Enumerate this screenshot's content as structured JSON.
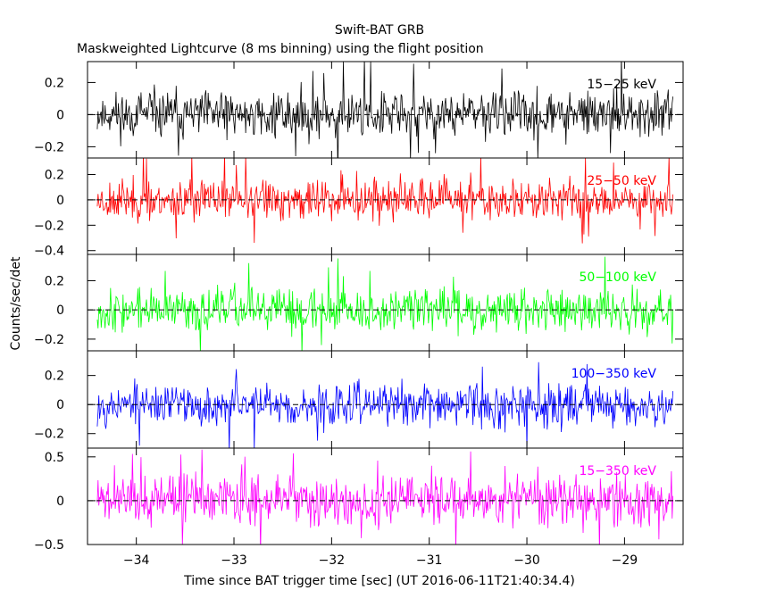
{
  "title": "Swift-BAT GRB",
  "subtitle": "Maskweighted Lightcurve (8 ms binning) using the flight position",
  "ylabel": "Counts/sec/det",
  "xlabel": "Time since BAT trigger time [sec] (UT 2016-06-11T21:40:34.4)",
  "chart_data": {
    "type": "line",
    "title": "Swift-BAT GRB",
    "subtitle": "Maskweighted Lightcurve (8 ms binning) using the flight position",
    "xlabel": "Time since BAT trigger time [sec] (UT 2016-06-11T21:40:34.4)",
    "ylabel": "Counts/sec/det",
    "xlim": [
      -34.5,
      -28.4
    ],
    "x_range_data": [
      -34.4,
      -28.5
    ],
    "x_ticks": [
      -34,
      -33,
      -32,
      -31,
      -30,
      -29
    ],
    "x_tick_labels": [
      "−34",
      "−33",
      "−32",
      "−31",
      "−30",
      "−29"
    ],
    "bin_size_s": 0.008,
    "panels": [
      {
        "name": "15-25 keV",
        "label": "15−25 keV",
        "color": "#000000",
        "ylim": [
          -0.27,
          0.33
        ],
        "y_ticks": [
          -0.2,
          0,
          0.2
        ],
        "y_tick_labels": [
          "−0.2",
          "0",
          "0.2"
        ],
        "amplitude": 0.09,
        "extreme": 0.3,
        "spike_rate": 0.025,
        "seed": 11
      },
      {
        "name": "25-50 keV",
        "label": "25−50 keV",
        "color": "#ff0000",
        "ylim": [
          -0.43,
          0.33
        ],
        "y_ticks": [
          -0.4,
          -0.2,
          0,
          0.2
        ],
        "y_tick_labels": [
          "−0.4",
          "−0.2",
          "0",
          "0.2"
        ],
        "amplitude": 0.1,
        "extreme": 0.3,
        "spike_rate": 0.015,
        "seed": 23
      },
      {
        "name": "50-100 keV",
        "label": "50−100 keV",
        "color": "#00ff00",
        "ylim": [
          -0.28,
          0.38
        ],
        "y_ticks": [
          -0.2,
          0,
          0.2
        ],
        "y_tick_labels": [
          "−0.2",
          "0",
          "0.2"
        ],
        "amplitude": 0.09,
        "extreme": 0.3,
        "spike_rate": 0.015,
        "seed": 37
      },
      {
        "name": "100-350 keV",
        "label": "100−350 keV",
        "color": "#0000ff",
        "ylim": [
          -0.3,
          0.37
        ],
        "y_ticks": [
          -0.2,
          0,
          0.2
        ],
        "y_tick_labels": [
          "−0.2",
          "0",
          "0.2"
        ],
        "amplitude": 0.09,
        "extreme": 0.3,
        "spike_rate": 0.015,
        "seed": 53
      },
      {
        "name": "15-350 keV",
        "label": "15−350 keV",
        "color": "#ff00ff",
        "ylim": [
          -0.5,
          0.6
        ],
        "y_ticks": [
          -0.5,
          0,
          0.5
        ],
        "y_tick_labels": [
          "−0.5",
          "0",
          "0.5"
        ],
        "amplitude": 0.17,
        "extreme": 0.5,
        "spike_rate": 0.03,
        "seed": 71
      }
    ]
  }
}
